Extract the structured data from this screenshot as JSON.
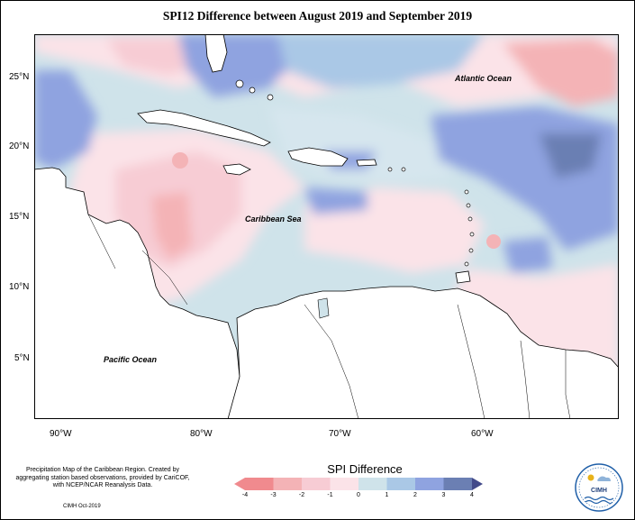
{
  "title": "SPI12 Difference between August 2019 and September 2019",
  "map": {
    "lat_labels": [
      "25°N",
      "20°N",
      "15°N",
      "10°N",
      "5°N"
    ],
    "lon_labels": [
      "90°W",
      "80°W",
      "70°W",
      "60°W"
    ],
    "place_labels": {
      "atlantic": "Atlantic Ocean",
      "caribbean": "Caribbean Sea",
      "pacific": "Pacific Ocean"
    }
  },
  "legend": {
    "title": "SPI Difference",
    "ticks": [
      "-4",
      "-3",
      "-2",
      "-1",
      "0",
      "1",
      "2",
      "3",
      "4"
    ],
    "colors": [
      "#f08a8e",
      "#f4b3b6",
      "#f7ccd4",
      "#fbe3e8",
      "#cfe3ea",
      "#aac8e6",
      "#8fa3e0",
      "#6b7fb3",
      "#424a8a"
    ]
  },
  "footer": {
    "note": "Precipitation Map of the Caribbean Region. Created by aggregating station based observations, provided by CariCOF, with NCEP/NCAR Reanalysis Data.",
    "credit": "CIMH Oct-2019",
    "logo_text": "CIMH"
  }
}
